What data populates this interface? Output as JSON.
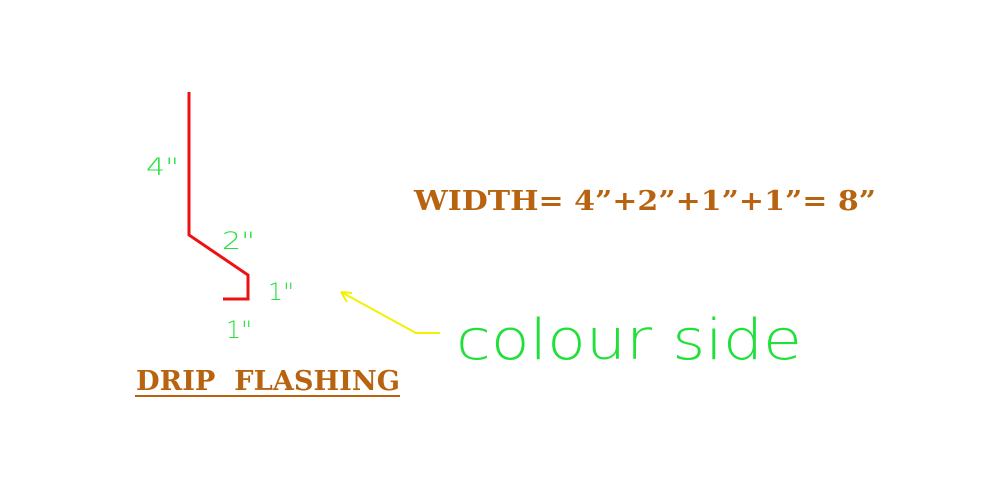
{
  "diagram": {
    "title": "DRIP  FLASHING",
    "width_formula": "WIDTH=  4”+2”+1”+1”=  8”",
    "dimension_labels": [
      "4\"",
      "2\"",
      "1\"",
      "1\""
    ],
    "annotation": "colour side"
  },
  "colors": {
    "profile_line": "#ee1111",
    "dimension_text": "#22e03a",
    "title_text": "#b8630f",
    "arrow": "#f2f200",
    "background": "#ffffff"
  }
}
